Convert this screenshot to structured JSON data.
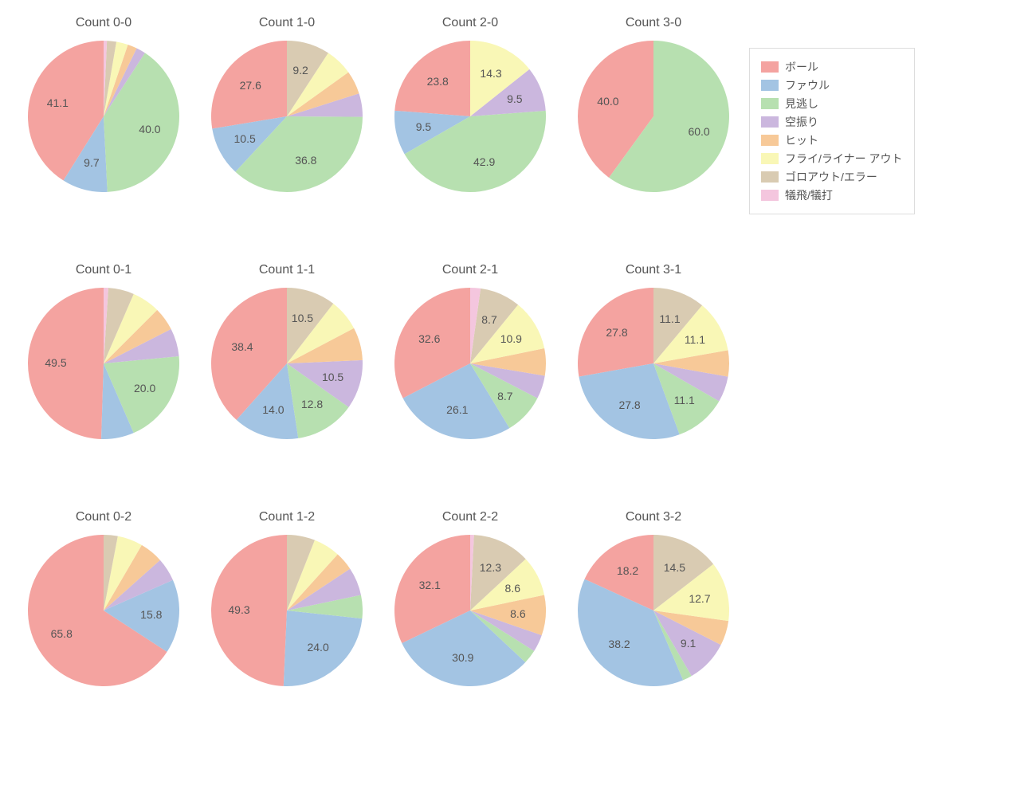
{
  "background_color": "#ffffff",
  "text_color": "#555555",
  "title_fontsize": 16,
  "label_fontsize": 14,
  "pie_radius": 95,
  "label_radius": 60,
  "label_min_percent": 8.0,
  "start_angle_deg": 90,
  "direction": "counterclockwise",
  "categories": [
    {
      "key": "ball",
      "label": "ボール",
      "color": "#f4a3a0"
    },
    {
      "key": "foul",
      "label": "ファウル",
      "color": "#a3c4e3"
    },
    {
      "key": "looking",
      "label": "見逃し",
      "color": "#b7e0b0"
    },
    {
      "key": "swing",
      "label": "空振り",
      "color": "#cbb7de"
    },
    {
      "key": "hit",
      "label": "ヒット",
      "color": "#f7c998"
    },
    {
      "key": "flyout",
      "label": "フライ/ライナー アウト",
      "color": "#f9f7b6"
    },
    {
      "key": "groundout",
      "label": "ゴロアウト/エラー",
      "color": "#d9cbb2"
    },
    {
      "key": "sac",
      "label": "犠飛/犠打",
      "color": "#f4c6de"
    }
  ],
  "legend": {
    "border_color": "#dddddd",
    "position": "top-right"
  },
  "charts": [
    {
      "title": "Count 0-0",
      "row": 0,
      "col": 0,
      "values": {
        "ball": 41.1,
        "foul": 9.7,
        "looking": 40.0,
        "swing": 2.0,
        "hit": 2.0,
        "flyout": 2.5,
        "groundout": 2.0,
        "sac": 0.7
      }
    },
    {
      "title": "Count 1-0",
      "row": 0,
      "col": 1,
      "values": {
        "ball": 27.6,
        "foul": 10.5,
        "looking": 36.8,
        "swing": 5.0,
        "hit": 5.0,
        "flyout": 5.9,
        "groundout": 9.2,
        "sac": 0.0
      }
    },
    {
      "title": "Count 2-0",
      "row": 0,
      "col": 2,
      "values": {
        "ball": 23.8,
        "foul": 9.5,
        "looking": 42.9,
        "swing": 9.5,
        "hit": 0.0,
        "flyout": 14.3,
        "groundout": 0.0,
        "sac": 0.0
      }
    },
    {
      "title": "Count 3-0",
      "row": 0,
      "col": 3,
      "values": {
        "ball": 40.0,
        "foul": 0.0,
        "looking": 60.0,
        "swing": 0.0,
        "hit": 0.0,
        "flyout": 0.0,
        "groundout": 0.0,
        "sac": 0.0
      }
    },
    {
      "title": "Count 0-1",
      "row": 1,
      "col": 0,
      "values": {
        "ball": 49.5,
        "foul": 7.0,
        "looking": 20.0,
        "swing": 6.0,
        "hit": 5.0,
        "flyout": 6.0,
        "groundout": 5.5,
        "sac": 1.0
      }
    },
    {
      "title": "Count 1-1",
      "row": 1,
      "col": 1,
      "values": {
        "ball": 38.4,
        "foul": 14.0,
        "looking": 12.8,
        "swing": 10.5,
        "hit": 7.0,
        "flyout": 6.8,
        "groundout": 10.5,
        "sac": 0.0
      }
    },
    {
      "title": "Count 2-1",
      "row": 1,
      "col": 2,
      "values": {
        "ball": 32.6,
        "foul": 26.1,
        "looking": 8.7,
        "swing": 5.0,
        "hit": 5.8,
        "flyout": 10.9,
        "groundout": 8.7,
        "sac": 2.2
      }
    },
    {
      "title": "Count 3-1",
      "row": 1,
      "col": 3,
      "values": {
        "ball": 27.8,
        "foul": 27.8,
        "looking": 11.1,
        "swing": 5.5,
        "hit": 5.6,
        "flyout": 11.1,
        "groundout": 11.1,
        "sac": 0.0
      }
    },
    {
      "title": "Count 0-2",
      "row": 2,
      "col": 0,
      "values": {
        "ball": 65.8,
        "foul": 15.8,
        "looking": 0.0,
        "swing": 5.0,
        "hit": 5.0,
        "flyout": 5.4,
        "groundout": 3.0,
        "sac": 0.0
      }
    },
    {
      "title": "Count 1-2",
      "row": 2,
      "col": 1,
      "values": {
        "ball": 49.3,
        "foul": 24.0,
        "looking": 5.0,
        "swing": 6.0,
        "hit": 4.0,
        "flyout": 5.7,
        "groundout": 6.0,
        "sac": 0.0
      }
    },
    {
      "title": "Count 2-2",
      "row": 2,
      "col": 2,
      "values": {
        "ball": 32.1,
        "foul": 30.9,
        "looking": 3.0,
        "swing": 3.7,
        "hit": 8.6,
        "flyout": 8.6,
        "groundout": 12.3,
        "sac": 0.8
      }
    },
    {
      "title": "Count 3-2",
      "row": 2,
      "col": 3,
      "values": {
        "ball": 18.2,
        "foul": 38.2,
        "looking": 2.0,
        "swing": 9.1,
        "hit": 5.3,
        "flyout": 12.7,
        "groundout": 14.5,
        "sac": 0.0
      }
    }
  ]
}
